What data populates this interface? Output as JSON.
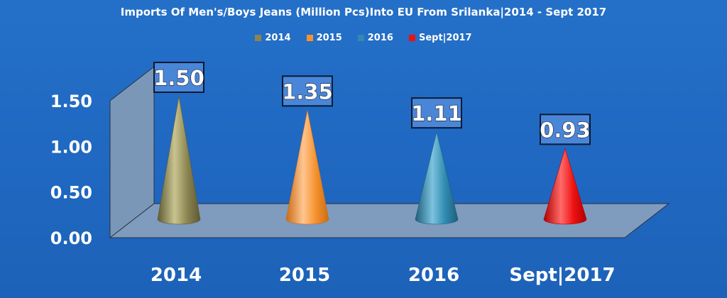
{
  "chart_data": {
    "type": "bar",
    "shape": "3d-cone",
    "title": "Imports Of Men's/Boys Jeans (Million Pcs)Into EU From Srilanka|2014 - Sept 2017",
    "categories": [
      "2014",
      "2015",
      "2016",
      "Sept|2017"
    ],
    "series": [
      {
        "name": "2014",
        "values": [
          1.5,
          null,
          null,
          null
        ]
      },
      {
        "name": "2015",
        "values": [
          null,
          1.35,
          null,
          null
        ]
      },
      {
        "name": "2016",
        "values": [
          null,
          null,
          1.11,
          null
        ]
      },
      {
        "name": "Sept|2017",
        "values": [
          null,
          null,
          null,
          0.93
        ]
      }
    ],
    "values": [
      1.5,
      1.35,
      1.11,
      0.93
    ],
    "data_labels": [
      "1.50",
      "1.35",
      "1.11",
      "0.93"
    ],
    "y_ticks": [
      "0.00",
      "0.50",
      "1.00",
      "1.50"
    ],
    "ylim": [
      0,
      1.5
    ],
    "xlabel": "",
    "ylabel": "",
    "grid": false,
    "legend_position": "top",
    "colors": [
      "#8a8450",
      "#f4922c",
      "#2f8bb0",
      "#ee1111"
    ],
    "colors_light": [
      "#c9c48f",
      "#ffc590",
      "#7cc3df",
      "#ff6a6a"
    ],
    "colors_dark": [
      "#5e5a33",
      "#c96c16",
      "#1d5f7a",
      "#b00000"
    ],
    "background_color": "#1f67c0",
    "label_box_color": "#4a86d8"
  }
}
